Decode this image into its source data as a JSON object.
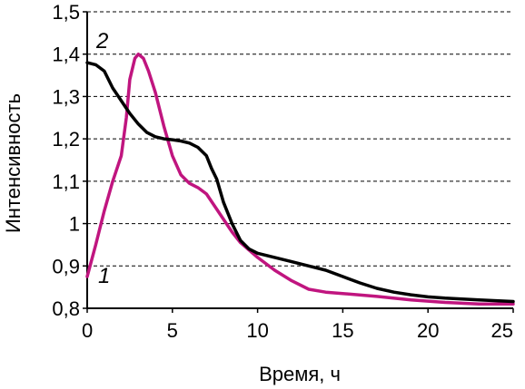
{
  "chart_data": {
    "type": "line",
    "xlabel": "Время, ч",
    "ylabel": "Интенсивность",
    "xlim": [
      0,
      25
    ],
    "ylim": [
      0.8,
      1.5
    ],
    "xticks": [
      0,
      5,
      10,
      15,
      20,
      25
    ],
    "yticks": [
      0.8,
      0.9,
      1.0,
      1.1,
      1.2,
      1.3,
      1.4,
      1.5
    ],
    "ytick_labels": [
      "0,8",
      "0,9",
      "1",
      "1,1",
      "1,2",
      "1,3",
      "1,4",
      "1,5"
    ],
    "xtick_labels": [
      "0",
      "5",
      "10",
      "15",
      "20",
      "25"
    ],
    "grid": "horizontal-dashed",
    "series": [
      {
        "name": "1",
        "color": "#c0157f",
        "x": [
          0,
          0.5,
          1,
          1.5,
          2,
          2.3,
          2.5,
          2.8,
          3.0,
          3.3,
          3.6,
          4,
          4.5,
          5,
          5.5,
          6,
          6.5,
          7,
          7.5,
          8,
          8.5,
          9,
          10,
          11,
          12,
          13,
          14,
          15,
          17,
          19,
          21,
          23,
          25
        ],
        "y": [
          0.875,
          0.95,
          1.03,
          1.1,
          1.16,
          1.25,
          1.34,
          1.39,
          1.4,
          1.39,
          1.36,
          1.31,
          1.23,
          1.16,
          1.115,
          1.095,
          1.085,
          1.07,
          1.04,
          1.01,
          0.98,
          0.955,
          0.92,
          0.89,
          0.865,
          0.845,
          0.838,
          0.835,
          0.828,
          0.82,
          0.814,
          0.81,
          0.81
        ]
      },
      {
        "name": "2",
        "color": "#000000",
        "x": [
          0,
          0.5,
          1,
          1.5,
          2,
          2.5,
          3,
          3.5,
          4,
          4.5,
          5,
          5.5,
          6,
          6.5,
          7,
          7.3,
          7.6,
          8,
          8.5,
          9,
          9.5,
          10,
          11,
          12,
          13,
          14,
          15,
          16,
          17,
          18,
          19,
          20,
          21,
          22,
          23,
          25
        ],
        "y": [
          1.38,
          1.375,
          1.36,
          1.32,
          1.29,
          1.26,
          1.235,
          1.215,
          1.205,
          1.2,
          1.198,
          1.195,
          1.19,
          1.18,
          1.16,
          1.13,
          1.105,
          1.05,
          1.0,
          0.96,
          0.94,
          0.93,
          0.92,
          0.91,
          0.9,
          0.89,
          0.875,
          0.86,
          0.847,
          0.838,
          0.832,
          0.827,
          0.824,
          0.822,
          0.82,
          0.816
        ]
      }
    ]
  }
}
